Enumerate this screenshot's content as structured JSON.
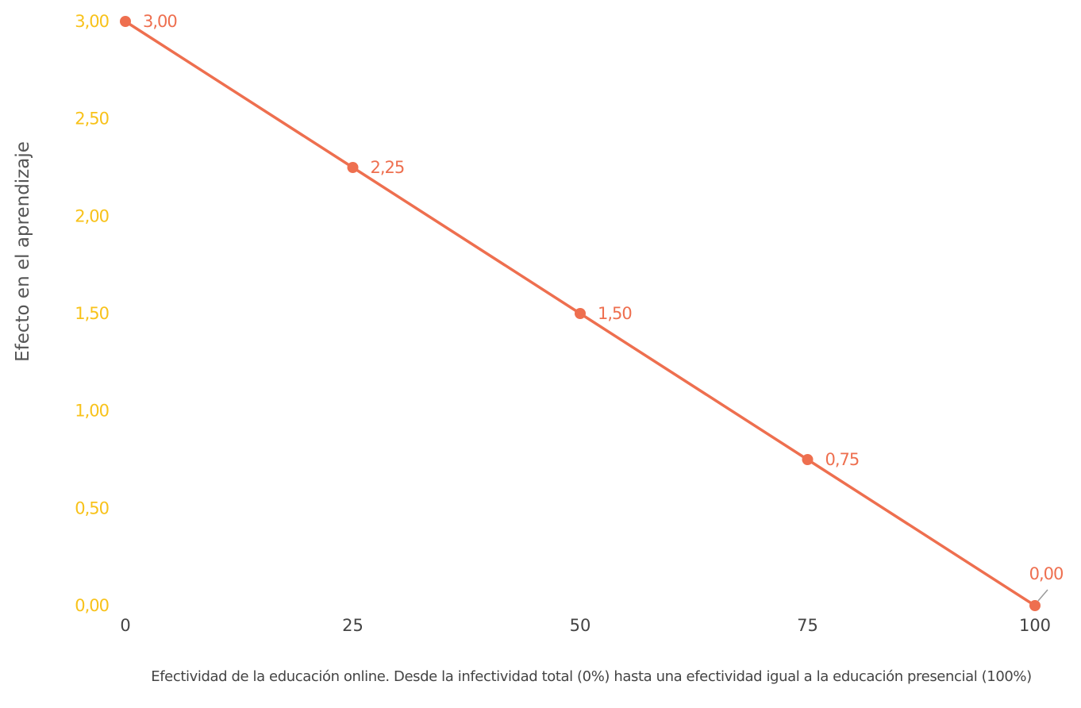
{
  "colors": {
    "series": "#ee6f4f",
    "y_tick": "#f8c21a",
    "x_tick": "#444444",
    "label_text": "#555555",
    "connector": "#9a9a9a"
  },
  "chart_data": {
    "type": "line",
    "title": "",
    "xlabel": "Efectividad de la educación online. Desde la infectividad total (0%) hasta una efectividad igual a la educación presencial (100%)",
    "ylabel": "Efecto en el aprendizaje",
    "x": [
      0,
      25,
      50,
      75,
      100
    ],
    "series": [
      {
        "values": [
          3.0,
          2.25,
          1.5,
          0.75,
          0.0
        ],
        "labels": [
          "3,00",
          "2,25",
          "1,50",
          "0,75",
          "0,00"
        ]
      }
    ],
    "xlim": [
      0,
      100
    ],
    "ylim": [
      0,
      3
    ],
    "x_ticks": [
      0,
      25,
      50,
      75,
      100
    ],
    "x_tick_labels": [
      "0",
      "25",
      "50",
      "75",
      "100"
    ],
    "y_ticks": [
      0,
      0.5,
      1,
      1.5,
      2,
      2.5,
      3
    ],
    "y_tick_labels": [
      "0,00",
      "0,50",
      "1,00",
      "1,50",
      "2,00",
      "2,50",
      "3,00"
    ],
    "grid": false,
    "legend": "none"
  }
}
